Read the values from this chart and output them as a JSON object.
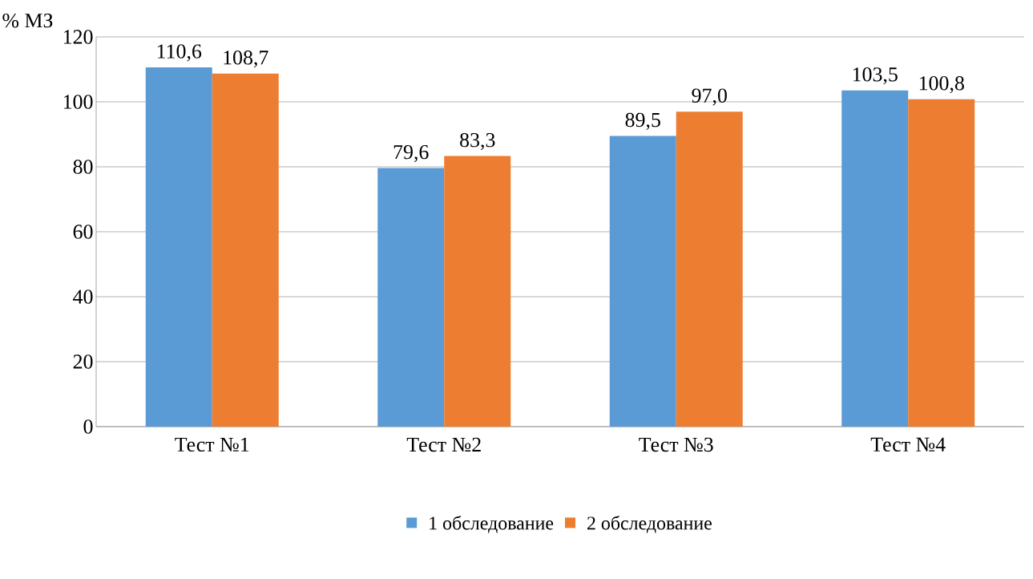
{
  "chart_data": {
    "type": "bar",
    "ylabel": "% МЗ",
    "categories": [
      "Тест №1",
      "Тест №2",
      "Тест №3",
      "Тест №4"
    ],
    "series": [
      {
        "name": "1 обследование",
        "color": "#5b9bd5",
        "values": [
          110.6,
          79.6,
          89.5,
          103.5
        ],
        "value_labels": [
          "110,6",
          "79,6",
          "89,5",
          "103,5"
        ]
      },
      {
        "name": "2 обследование",
        "color": "#ed7d31",
        "values": [
          108.7,
          83.3,
          97.0,
          100.8
        ],
        "value_labels": [
          "108,7",
          "83,3",
          "97,0",
          "100,8"
        ]
      }
    ],
    "ylim": [
      0,
      120
    ],
    "yticks": [
      0,
      20,
      40,
      60,
      80,
      100,
      120
    ],
    "grid": "y",
    "legend": "bottom"
  }
}
